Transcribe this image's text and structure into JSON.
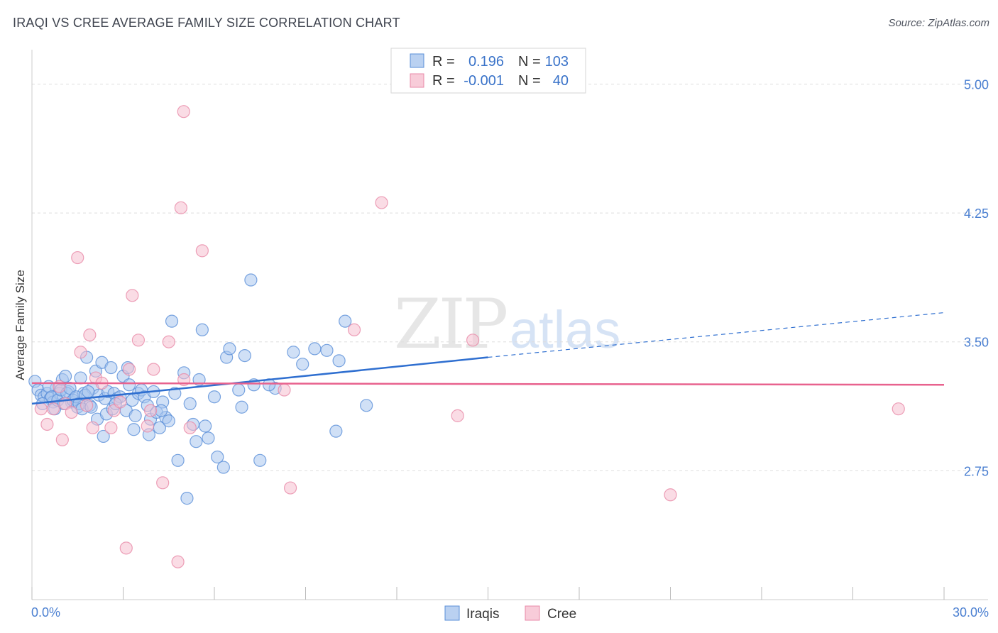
{
  "title": "IRAQI VS CREE AVERAGE FAMILY SIZE CORRELATION CHART",
  "source": "Source: ZipAtlas.com",
  "watermark": {
    "zip": "ZIP",
    "atlas": "atlas"
  },
  "colors": {
    "iraqis_fill": "#a9c6ee",
    "iraqis_stroke": "#5a8fd8",
    "iraqis_line": "#2f6fd0",
    "cree_fill": "#f6bfd0",
    "cree_stroke": "#e88aa8",
    "cree_line": "#e8628e",
    "grid": "#dddddd",
    "tick_label": "#4a7fd1"
  },
  "chart_data": {
    "type": "scatter",
    "title": "IRAQI VS CREE AVERAGE FAMILY SIZE CORRELATION CHART",
    "xlabel": "",
    "ylabel": "Average Family Size",
    "xlim": [
      0,
      30
    ],
    "ylim": [
      2.0,
      5.2
    ],
    "x_tick_labels": [
      "0.0%",
      "30.0%"
    ],
    "y_ticks": [
      2.75,
      3.5,
      4.25,
      5.0
    ],
    "y_tick_labels": [
      "2.75",
      "3.50",
      "4.25",
      "5.00"
    ],
    "grid": true,
    "legend_top": [
      {
        "r_label": "R =",
        "r_value": "0.196",
        "n_label": "N =",
        "n_value": "103"
      },
      {
        "r_label": "R =",
        "r_value": "-0.001",
        "n_label": "N =",
        "n_value": "40"
      }
    ],
    "series": [
      {
        "name": "Iraqis",
        "trend": {
          "x0": 0,
          "y0": 3.14,
          "x1": 15,
          "y1": 3.41,
          "x_dash_end": 30,
          "y_dash_end": 3.67
        },
        "points": [
          [
            0.1,
            3.27
          ],
          [
            0.2,
            3.22
          ],
          [
            0.3,
            3.19
          ],
          [
            0.4,
            3.18
          ],
          [
            0.5,
            3.2
          ],
          [
            0.6,
            3.17
          ],
          [
            0.7,
            3.15
          ],
          [
            0.8,
            3.23
          ],
          [
            0.9,
            3.2
          ],
          [
            1.0,
            3.28
          ],
          [
            1.1,
            3.3
          ],
          [
            1.2,
            3.21
          ],
          [
            1.3,
            3.15
          ],
          [
            1.4,
            3.17
          ],
          [
            1.5,
            3.12
          ],
          [
            1.6,
            3.29
          ],
          [
            1.7,
            3.2
          ],
          [
            1.8,
            3.41
          ],
          [
            1.9,
            3.13
          ],
          [
            2.0,
            3.23
          ],
          [
            2.1,
            3.33
          ],
          [
            2.2,
            3.19
          ],
          [
            2.3,
            3.38
          ],
          [
            2.4,
            3.17
          ],
          [
            2.5,
            3.21
          ],
          [
            2.6,
            3.35
          ],
          [
            2.7,
            3.2
          ],
          [
            2.8,
            3.17
          ],
          [
            2.9,
            3.18
          ],
          [
            3.0,
            3.3
          ],
          [
            3.1,
            3.1
          ],
          [
            3.2,
            3.25
          ],
          [
            3.3,
            3.16
          ],
          [
            3.4,
            3.07
          ],
          [
            3.5,
            3.2
          ],
          [
            3.6,
            3.22
          ],
          [
            3.7,
            3.18
          ],
          [
            3.8,
            3.13
          ],
          [
            3.9,
            3.05
          ],
          [
            4.0,
            3.21
          ],
          [
            4.1,
            3.09
          ],
          [
            4.2,
            3.0
          ],
          [
            4.3,
            3.15
          ],
          [
            4.4,
            3.06
          ],
          [
            4.5,
            3.04
          ],
          [
            4.6,
            3.62
          ],
          [
            4.7,
            3.2
          ],
          [
            4.8,
            2.81
          ],
          [
            5.0,
            3.32
          ],
          [
            5.1,
            2.59
          ],
          [
            5.2,
            3.14
          ],
          [
            5.3,
            3.02
          ],
          [
            5.4,
            2.92
          ],
          [
            5.5,
            3.28
          ],
          [
            5.6,
            3.57
          ],
          [
            5.7,
            3.01
          ],
          [
            5.8,
            2.94
          ],
          [
            6.0,
            3.18
          ],
          [
            6.1,
            2.83
          ],
          [
            6.3,
            2.77
          ],
          [
            6.4,
            3.41
          ],
          [
            6.5,
            3.46
          ],
          [
            6.8,
            3.22
          ],
          [
            6.9,
            3.12
          ],
          [
            7.0,
            3.42
          ],
          [
            7.3,
            3.25
          ],
          [
            7.2,
            3.86
          ],
          [
            7.5,
            2.81
          ],
          [
            8.0,
            3.23
          ],
          [
            7.8,
            3.25
          ],
          [
            8.6,
            3.44
          ],
          [
            8.9,
            3.37
          ],
          [
            9.3,
            3.46
          ],
          [
            9.7,
            3.45
          ],
          [
            10.0,
            2.98
          ],
          [
            10.1,
            3.39
          ],
          [
            10.3,
            3.62
          ],
          [
            11.0,
            3.13
          ],
          [
            0.35,
            3.14
          ],
          [
            0.55,
            3.24
          ],
          [
            0.65,
            3.18
          ],
          [
            0.75,
            3.11
          ],
          [
            0.85,
            3.16
          ],
          [
            0.95,
            3.22
          ],
          [
            1.05,
            3.14
          ],
          [
            1.15,
            3.2
          ],
          [
            1.25,
            3.23
          ],
          [
            1.35,
            3.16
          ],
          [
            1.45,
            3.18
          ],
          [
            1.55,
            3.14
          ],
          [
            1.65,
            3.11
          ],
          [
            1.75,
            3.19
          ],
          [
            1.85,
            3.21
          ],
          [
            1.95,
            3.12
          ],
          [
            2.15,
            3.05
          ],
          [
            2.35,
            2.95
          ],
          [
            2.45,
            3.08
          ],
          [
            2.65,
            3.11
          ],
          [
            2.75,
            3.14
          ],
          [
            3.15,
            3.35
          ],
          [
            3.35,
            2.99
          ],
          [
            3.85,
            2.96
          ],
          [
            4.25,
            3.1
          ]
        ]
      },
      {
        "name": "Cree",
        "trend": {
          "x0": 0,
          "y0": 3.26,
          "x1": 30,
          "y1": 3.25
        },
        "points": [
          [
            0.3,
            3.11
          ],
          [
            0.5,
            3.02
          ],
          [
            0.7,
            3.11
          ],
          [
            0.9,
            3.24
          ],
          [
            1.1,
            3.14
          ],
          [
            1.0,
            2.93
          ],
          [
            1.3,
            3.09
          ],
          [
            1.5,
            3.99
          ],
          [
            1.6,
            3.44
          ],
          [
            1.8,
            3.13
          ],
          [
            1.9,
            3.54
          ],
          [
            2.0,
            3.0
          ],
          [
            2.1,
            3.29
          ],
          [
            2.3,
            3.26
          ],
          [
            2.6,
            3.0
          ],
          [
            2.7,
            3.1
          ],
          [
            2.9,
            3.15
          ],
          [
            3.1,
            2.3
          ],
          [
            3.2,
            3.34
          ],
          [
            3.5,
            3.51
          ],
          [
            3.8,
            3.01
          ],
          [
            3.9,
            3.1
          ],
          [
            4.0,
            3.34
          ],
          [
            4.3,
            2.68
          ],
          [
            4.5,
            3.5
          ],
          [
            4.8,
            2.22
          ],
          [
            5.0,
            3.28
          ],
          [
            5.2,
            3.0
          ],
          [
            4.9,
            4.28
          ],
          [
            5.6,
            4.03
          ],
          [
            4.99,
            4.84
          ],
          [
            3.3,
            3.77
          ],
          [
            8.3,
            3.22
          ],
          [
            8.5,
            2.65
          ],
          [
            10.6,
            3.57
          ],
          [
            11.5,
            4.31
          ],
          [
            14.0,
            3.07
          ],
          [
            14.5,
            3.51
          ],
          [
            21.0,
            2.61
          ],
          [
            28.5,
            3.11
          ]
        ]
      }
    ]
  },
  "bottom_legend": [
    {
      "name": "Iraqis"
    },
    {
      "name": "Cree"
    }
  ]
}
